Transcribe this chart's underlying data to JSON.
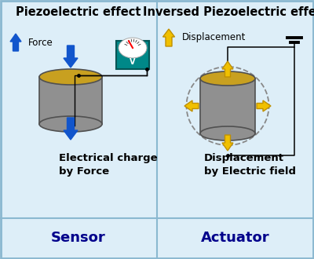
{
  "bg_color": "#ddeef8",
  "panel_bg": "#ddeef8",
  "border_color": "#8ab8d0",
  "title_left": "Piezoelectric effect",
  "title_right": "Inversed Piezoelectric effect",
  "label_left_top": "Force",
  "label_right_top": "Displacement",
  "label_left_bottom1": "Electrical charge",
  "label_left_bottom2": "by Force",
  "label_right_bottom1": "Displacement",
  "label_right_bottom2": "by Electric field",
  "footer_left": "Sensor",
  "footer_right": "Actuator",
  "blue": "#1155cc",
  "yellow": "#f0c000",
  "yellow_edge": "#c09000",
  "teal": "#008888",
  "gray_cyl": "#909090",
  "gray_cyl_edge": "#505050",
  "gold": "#c8a020",
  "navy": "#00008B",
  "white": "#ffffff",
  "black": "#000000"
}
